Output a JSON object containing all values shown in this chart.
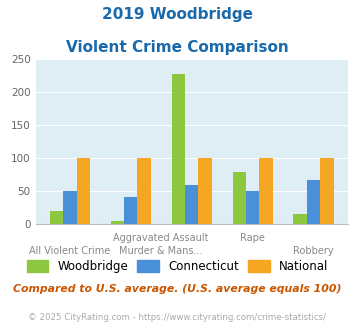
{
  "title_line1": "2019 Woodbridge",
  "title_line2": "Violent Crime Comparison",
  "woodbridge": [
    20,
    5,
    228,
    80,
    15
  ],
  "connecticut": [
    50,
    42,
    60,
    50,
    67
  ],
  "national": [
    100,
    100,
    100,
    100,
    100
  ],
  "woodbridge_color": "#8dc63f",
  "connecticut_color": "#4a90d9",
  "national_color": "#f5a623",
  "ylim": [
    0,
    250
  ],
  "yticks": [
    0,
    50,
    100,
    150,
    200,
    250
  ],
  "bg_color": "#deeef4",
  "title_color": "#1a6aab",
  "footnote": "Compared to U.S. average. (U.S. average equals 100)",
  "copyright": "© 2025 CityRating.com - https://www.cityrating.com/crime-statistics/",
  "footnote_color": "#cc5500",
  "copyright_color": "#aaaaaa",
  "copyright_link_color": "#4a90d9",
  "xtick_top": [
    "All Violent Crime",
    "Aggravated Assault",
    "",
    "Rape",
    "Robbery"
  ],
  "xtick_bot": [
    "",
    "Murder & Mans...",
    "",
    "",
    ""
  ]
}
